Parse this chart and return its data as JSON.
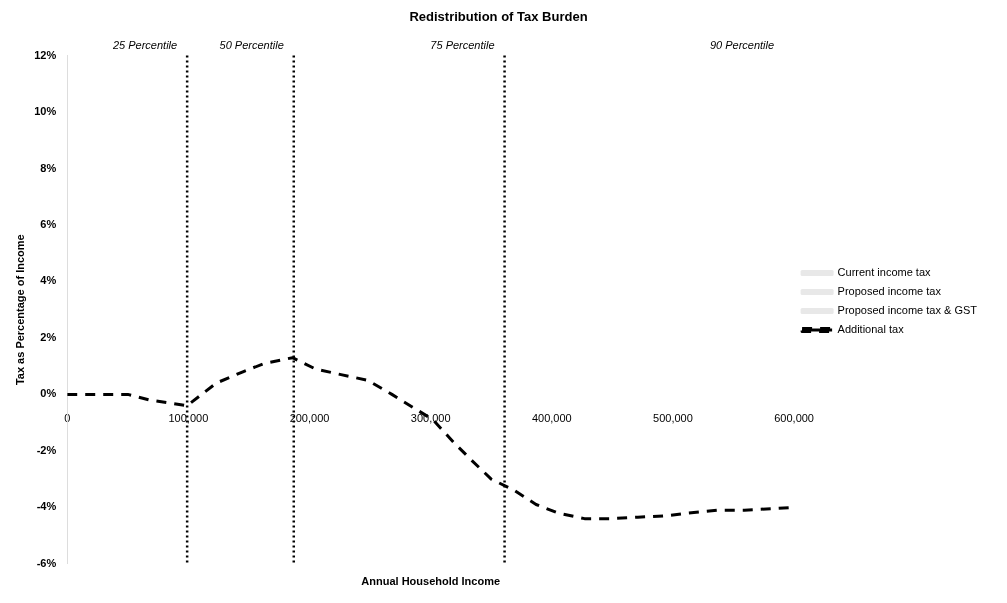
{
  "chart_data": {
    "type": "line",
    "title": "Redistribution of Tax Burden",
    "xlabel": "Annual Household Income",
    "ylabel": "Tax as Percentage of Income",
    "xlim": [
      0,
      600000
    ],
    "ylim": [
      -6,
      12
    ],
    "xticks": [
      {
        "value": 0,
        "label": "0"
      },
      {
        "value": 100000,
        "label": "100,000"
      },
      {
        "value": 200000,
        "label": "200,000"
      },
      {
        "value": 300000,
        "label": "300,000"
      },
      {
        "value": 400000,
        "label": "400,000"
      },
      {
        "value": 500000,
        "label": "500,000"
      },
      {
        "value": 600000,
        "label": "600,000"
      }
    ],
    "yticks": [
      {
        "value": -6,
        "label": "-6%"
      },
      {
        "value": -4,
        "label": "-4%"
      },
      {
        "value": -2,
        "label": "-2%"
      },
      {
        "value": 0,
        "label": "0%"
      },
      {
        "value": 2,
        "label": "2%"
      },
      {
        "value": 4,
        "label": "4%"
      },
      {
        "value": 6,
        "label": "6%"
      },
      {
        "value": 8,
        "label": "8%"
      },
      {
        "value": 10,
        "label": "10%"
      },
      {
        "value": 12,
        "label": "12%"
      }
    ],
    "x": [
      0,
      25000,
      50000,
      68000,
      99000,
      123000,
      145000,
      163000,
      186000,
      205000,
      226000,
      248000,
      268000,
      302000,
      319000,
      333000,
      350000,
      369000,
      387000,
      405000,
      427000,
      449000,
      471000,
      494000,
      513000,
      537000,
      559000,
      581000,
      600000
    ],
    "series": [
      {
        "name": "Current income tax",
        "color": "#e8e8e8",
        "values": [
          null,
          null,
          null,
          null,
          null,
          null,
          null,
          null,
          null,
          null,
          null,
          null,
          null,
          null,
          null,
          null,
          null,
          null,
          null,
          null,
          null,
          null,
          null,
          null,
          null,
          null,
          null,
          null,
          null
        ]
      },
      {
        "name": "Proposed income tax",
        "color": "#e8e8e8",
        "values": [
          null,
          null,
          null,
          null,
          null,
          null,
          null,
          null,
          null,
          null,
          null,
          null,
          null,
          null,
          null,
          null,
          null,
          null,
          null,
          null,
          null,
          null,
          null,
          null,
          null,
          null,
          null,
          null,
          null
        ]
      },
      {
        "name": "Proposed income tax & GST",
        "color": "#e8e8e8",
        "values": [
          null,
          null,
          null,
          null,
          null,
          null,
          null,
          null,
          null,
          null,
          null,
          null,
          null,
          null,
          null,
          null,
          null,
          null,
          null,
          null,
          null,
          null,
          null,
          null,
          null,
          null,
          null,
          null,
          null
        ]
      },
      {
        "name": "Additional tax",
        "color": "#000000",
        "line_style": "dashed",
        "values": [
          0,
          0,
          0,
          -0.2,
          -0.4,
          0.4,
          0.8,
          1.1,
          1.3,
          0.9,
          0.7,
          0.5,
          0,
          -0.9,
          -1.7,
          -2.3,
          -3.0,
          -3.4,
          -3.9,
          -4.2,
          -4.4,
          -4.4,
          -4.35,
          -4.3,
          -4.2,
          -4.1,
          -4.1,
          -4.05,
          -4.0
        ]
      }
    ],
    "ref_lines": [
      {
        "axis": "x",
        "value": 99000,
        "label": "25 Percentile",
        "line_style": "dotted",
        "color": "#000000"
      },
      {
        "axis": "x",
        "value": 187000,
        "label": "50 Percentile",
        "line_style": "dotted",
        "color": "#000000"
      },
      {
        "axis": "x",
        "value": 361000,
        "label": "75 Percentile",
        "line_style": "dotted",
        "color": "#000000"
      }
    ],
    "annotations": [
      "90 Percentile"
    ],
    "legend": "right",
    "grid": false,
    "marker": "none"
  }
}
